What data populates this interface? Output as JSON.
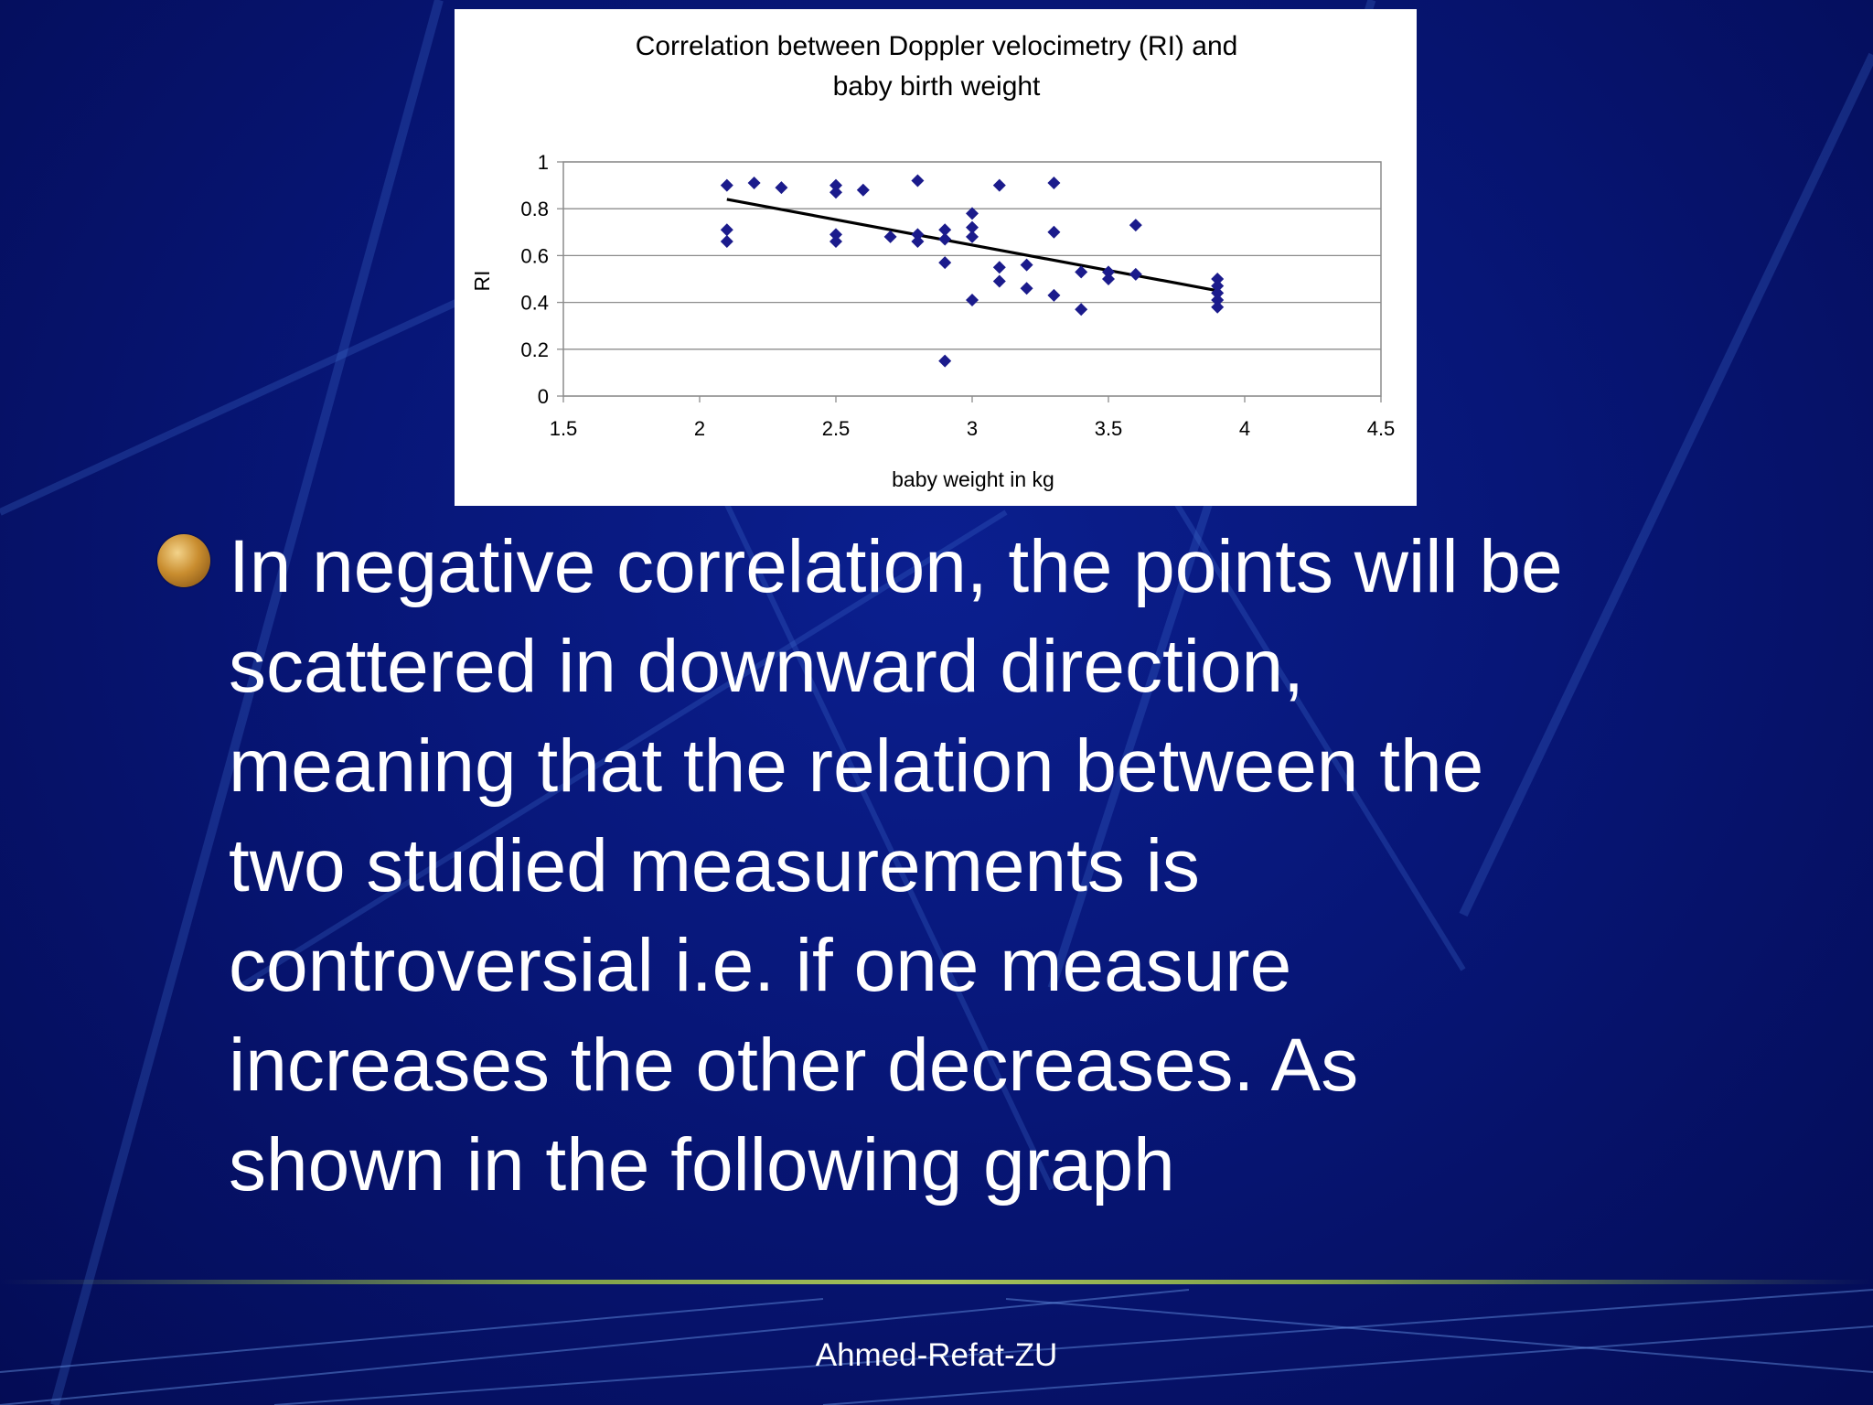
{
  "slide": {
    "bullet_text": "In negative correlation, the points will be\nscattered in downward direction,\nmeaning that the relation between the\ntwo studied measurements is\ncontroversial i.e. if one measure\nincreases the other decreases. As\nshown in the following graph",
    "footer": "Ahmed-Refat-ZU"
  },
  "chart_data": {
    "type": "scatter",
    "title_lines": [
      "Correlation between Doppler velocimetry (RI) and",
      "baby birth weight"
    ],
    "xlabel": "baby weight in kg",
    "ylabel": "RI",
    "xlim": [
      1.5,
      4.5
    ],
    "ylim": [
      0,
      1
    ],
    "xticks": [
      "1.5",
      "2",
      "2.5",
      "3",
      "3.5",
      "4",
      "4.5"
    ],
    "yticks": [
      "0",
      "0.2",
      "0.4",
      "0.6",
      "0.8",
      "1"
    ],
    "grid": "horizontal",
    "colors": {
      "points": "#1b1b8c",
      "trend": "#000000",
      "grid": "#8c8c8c",
      "background": "#ffffff"
    },
    "series": [
      {
        "marker": "diamond",
        "points": [
          [
            2.1,
            0.9
          ],
          [
            2.1,
            0.71
          ],
          [
            2.1,
            0.66
          ],
          [
            2.2,
            0.91
          ],
          [
            2.3,
            0.89
          ],
          [
            2.5,
            0.9
          ],
          [
            2.5,
            0.87
          ],
          [
            2.5,
            0.69
          ],
          [
            2.5,
            0.66
          ],
          [
            2.6,
            0.88
          ],
          [
            2.7,
            0.68
          ],
          [
            2.8,
            0.92
          ],
          [
            2.8,
            0.69
          ],
          [
            2.8,
            0.66
          ],
          [
            2.9,
            0.71
          ],
          [
            2.9,
            0.67
          ],
          [
            2.9,
            0.57
          ],
          [
            2.9,
            0.15
          ],
          [
            3.0,
            0.78
          ],
          [
            3.0,
            0.72
          ],
          [
            3.0,
            0.68
          ],
          [
            3.0,
            0.41
          ],
          [
            3.1,
            0.9
          ],
          [
            3.1,
            0.55
          ],
          [
            3.1,
            0.49
          ],
          [
            3.2,
            0.56
          ],
          [
            3.2,
            0.46
          ],
          [
            3.3,
            0.91
          ],
          [
            3.3,
            0.7
          ],
          [
            3.3,
            0.43
          ],
          [
            3.4,
            0.53
          ],
          [
            3.4,
            0.37
          ],
          [
            3.5,
            0.53
          ],
          [
            3.5,
            0.5
          ],
          [
            3.6,
            0.73
          ],
          [
            3.6,
            0.52
          ],
          [
            3.9,
            0.5
          ],
          [
            3.9,
            0.47
          ],
          [
            3.9,
            0.44
          ],
          [
            3.9,
            0.41
          ],
          [
            3.9,
            0.38
          ]
        ]
      }
    ],
    "trendline": {
      "x": [
        2.1,
        3.9
      ],
      "y": [
        0.84,
        0.45
      ]
    }
  }
}
